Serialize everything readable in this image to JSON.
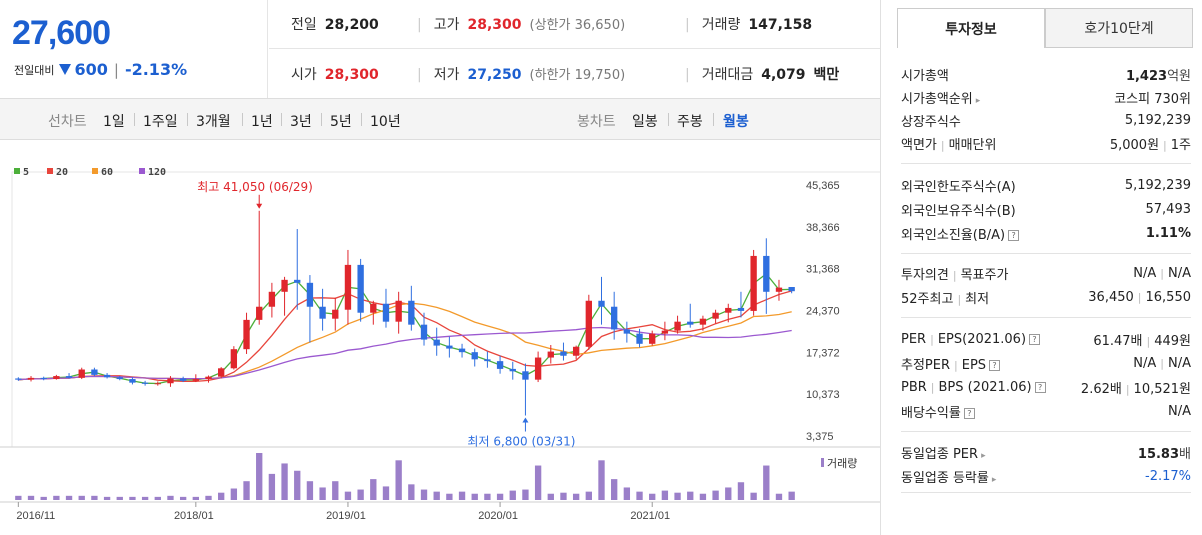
{
  "price": {
    "current": "27,600",
    "change_label": "전일대비",
    "change_value": "600",
    "change_pct": "-2.13%"
  },
  "quote": {
    "prev_close_label": "전일",
    "prev_close": "28,200",
    "high_label": "고가",
    "high": "28,300",
    "upper_limit": "(상한가 36,650)",
    "volume_label": "거래량",
    "volume": "147,158",
    "open_label": "시가",
    "open": "28,300",
    "low_label": "저가",
    "low": "27,250",
    "lower_limit": "(하한가 19,750)",
    "trade_value_label": "거래대금",
    "trade_value": "4,079",
    "trade_value_unit": "백만"
  },
  "period_bar": {
    "line_label": "선차트",
    "line_items": [
      "1일",
      "1주일",
      "3개월",
      "1년",
      "3년",
      "5년",
      "10년"
    ],
    "candle_label": "봉차트",
    "candle_items": [
      "일봉",
      "주봉",
      "월봉"
    ],
    "selected_candle": "월봉"
  },
  "chart_data": {
    "type": "candlestick",
    "legend": [
      {
        "name": "5",
        "color": "#4caf3a"
      },
      {
        "name": "20",
        "color": "#e8453c"
      },
      {
        "name": "60",
        "color": "#f39a2b"
      },
      {
        "name": "120",
        "color": "#9b59d0"
      }
    ],
    "y_ticks": [
      "45,365",
      "38,366",
      "31,368",
      "24,370",
      "17,372",
      "10,373",
      "3,375"
    ],
    "y_tick_values": [
      45365,
      38366,
      31368,
      24370,
      17372,
      10373,
      3375
    ],
    "ylim": [
      3375,
      45365
    ],
    "x_ticks": [
      "2016/11",
      "2018/01",
      "2019/01",
      "2020/01",
      "2021/01"
    ],
    "x_tick_index": [
      0,
      14,
      26,
      38,
      50
    ],
    "max_annotation": "최고 41,050 (06/29)",
    "min_annotation": "최저 6,800 (03/31)",
    "max_index": 19,
    "min_index": 40,
    "volume_label": "거래량",
    "up_color": "#e0262c",
    "down_color": "#2f6fe0",
    "candles": [
      [
        13000,
        13200,
        12600,
        12800
      ],
      [
        12800,
        13400,
        12500,
        13100
      ],
      [
        13100,
        13300,
        12700,
        12900
      ],
      [
        12900,
        13600,
        12800,
        13400
      ],
      [
        13400,
        13900,
        13000,
        13100
      ],
      [
        13100,
        14800,
        12900,
        14500
      ],
      [
        14500,
        14800,
        13400,
        13600
      ],
      [
        13600,
        13900,
        13000,
        13200
      ],
      [
        13200,
        13400,
        12700,
        12900
      ],
      [
        12900,
        13200,
        12000,
        12300
      ],
      [
        12300,
        12600,
        11800,
        12100
      ],
      [
        12100,
        12500,
        11800,
        12200
      ],
      [
        12200,
        13400,
        11600,
        13000
      ],
      [
        13000,
        13300,
        12400,
        12600
      ],
      [
        12600,
        13700,
        12400,
        12900
      ],
      [
        12900,
        13500,
        12300,
        13300
      ],
      [
        13300,
        14900,
        13000,
        14700
      ],
      [
        14700,
        18400,
        14500,
        17900
      ],
      [
        17900,
        24000,
        17100,
        22800
      ],
      [
        22800,
        41050,
        22000,
        25000
      ],
      [
        25000,
        29000,
        23200,
        27500
      ],
      [
        27500,
        30000,
        23500,
        29500
      ],
      [
        29500,
        38000,
        24500,
        29000
      ],
      [
        29000,
        30300,
        19000,
        25000
      ],
      [
        25000,
        28000,
        21000,
        23000
      ],
      [
        23000,
        26500,
        21000,
        24500
      ],
      [
        24500,
        34500,
        22000,
        32000
      ],
      [
        32000,
        33000,
        22500,
        24000
      ],
      [
        24000,
        26000,
        22000,
        25500
      ],
      [
        25500,
        28000,
        21500,
        22500
      ],
      [
        22500,
        27500,
        20500,
        26000
      ],
      [
        26000,
        28500,
        21000,
        22000
      ],
      [
        22000,
        24000,
        18500,
        19500
      ],
      [
        19500,
        21500,
        16800,
        18500
      ],
      [
        18500,
        20000,
        16500,
        18000
      ],
      [
        18000,
        18800,
        16500,
        17400
      ],
      [
        17400,
        18000,
        15000,
        16200
      ],
      [
        16200,
        17500,
        14800,
        15900
      ],
      [
        15900,
        16800,
        13800,
        14600
      ],
      [
        14600,
        15800,
        12800,
        14200
      ],
      [
        14200,
        15500,
        6800,
        12800
      ],
      [
        12800,
        17500,
        12400,
        16500
      ],
      [
        16500,
        18600,
        15500,
        17500
      ],
      [
        17500,
        19000,
        16000,
        16800
      ],
      [
        16800,
        18500,
        16200,
        18300
      ],
      [
        18300,
        27000,
        17800,
        26000
      ],
      [
        26000,
        30000,
        22000,
        25000
      ],
      [
        25000,
        27500,
        19500,
        21200
      ],
      [
        21200,
        22500,
        19000,
        20500
      ],
      [
        20500,
        21300,
        18200,
        18800
      ],
      [
        18800,
        21000,
        18500,
        20500
      ],
      [
        20500,
        22500,
        19400,
        21000
      ],
      [
        21000,
        23500,
        20500,
        22500
      ],
      [
        22500,
        25500,
        21500,
        22000
      ],
      [
        22000,
        23500,
        21000,
        23000
      ],
      [
        23000,
        24500,
        22200,
        24000
      ],
      [
        24000,
        25500,
        22400,
        24800
      ],
      [
        24800,
        27500,
        23200,
        24300
      ],
      [
        24300,
        34500,
        23500,
        33500
      ],
      [
        33500,
        36450,
        23800,
        27500
      ],
      [
        27500,
        29500,
        26000,
        28200
      ],
      [
        28300,
        28300,
        27250,
        27600
      ]
    ],
    "volumes": [
      4,
      4,
      3,
      4,
      4,
      4,
      4,
      3,
      3,
      3,
      3,
      3,
      4,
      3,
      3,
      4,
      7,
      11,
      18,
      45,
      25,
      35,
      28,
      18,
      12,
      18,
      8,
      10,
      20,
      13,
      38,
      15,
      10,
      8,
      6,
      8,
      6,
      6,
      6,
      9,
      10,
      33,
      6,
      7,
      6,
      8,
      38,
      20,
      12,
      8,
      6,
      9,
      7,
      8,
      6,
      9,
      12,
      17,
      7,
      33,
      6,
      8
    ]
  },
  "sidebar": {
    "tab_active": "투자정보",
    "tab_inactive": "호가10단계",
    "market_cap_label": "시가총액",
    "market_cap_value": "1,423",
    "market_cap_unit": "억원",
    "market_cap_rank_label": "시가총액순위",
    "market_cap_rank_value": "코스피 730위",
    "shares_label": "상장주식수",
    "shares_value": "5,192,239",
    "par_label": "액면가",
    "trade_unit_label": "매매단위",
    "par_value": "5,000원",
    "trade_unit_value": "1주",
    "foreign_limit_label": "외국인한도주식수(A)",
    "foreign_limit_value": "5,192,239",
    "foreign_hold_label": "외국인보유주식수(B)",
    "foreign_hold_value": "57,493",
    "foreign_ratio_label": "외국인소진율(B/A)",
    "foreign_ratio_value": "1.11%",
    "opinion_label": "투자의견",
    "target_label": "목표주가",
    "opinion_value": "N/A",
    "target_value": "N/A",
    "w52_high_label": "52주최고",
    "w52_low_label": "최저",
    "w52_high_value": "36,450",
    "w52_low_value": "16,550",
    "per_label": "PER",
    "eps_label": "EPS(2021.06)",
    "per_value": "61.47배",
    "eps_value": "449원",
    "est_per_label": "추정PER",
    "est_eps_label": "EPS",
    "est_per_value": "N/A",
    "est_eps_value": "N/A",
    "pbr_label": "PBR",
    "bps_label": "BPS (2021.06)",
    "pbr_value": "2.62배",
    "bps_value": "10,521원",
    "div_label": "배당수익률",
    "div_value": "N/A",
    "ind_per_label": "동일업종 PER",
    "ind_per_value": "15.83",
    "ind_per_unit": "배",
    "ind_chg_label": "동일업종 등락률",
    "ind_chg_value": "-2.17%"
  }
}
